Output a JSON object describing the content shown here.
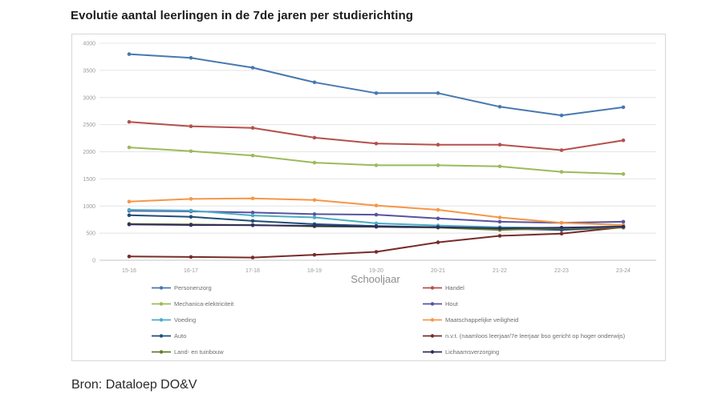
{
  "page": {
    "title": "Evolutie aantal leerlingen in de 7de jaren per studierichting",
    "source": "Bron: Dataloep DO&V"
  },
  "chart_data": {
    "type": "line",
    "title": "Evolutie aantal leerlingen in de 7de jaren per studierichting",
    "xlabel": "Schooljaar",
    "ylabel": "",
    "ylim": [
      0,
      4000
    ],
    "yticks": [
      0,
      500,
      1000,
      1500,
      2000,
      2500,
      3000,
      3500,
      4000
    ],
    "grid": true,
    "legend_position": "bottom-two-columns",
    "markers": true,
    "categories": [
      "15-16",
      "16-17",
      "17-18",
      "18-19",
      "19-20",
      "20-21",
      "21-22",
      "22-23",
      "23-24"
    ],
    "series": [
      {
        "name": "Personenzorg",
        "color": "#4878af",
        "values": [
          3800,
          3730,
          3550,
          3280,
          3080,
          3080,
          2830,
          2670,
          2820
        ]
      },
      {
        "name": "Handel",
        "color": "#b5504c",
        "values": [
          2550,
          2470,
          2440,
          2260,
          2150,
          2130,
          2130,
          2030,
          2210
        ]
      },
      {
        "name": "Mechanica-elektriciteit",
        "color": "#9bbb59",
        "values": [
          2080,
          2010,
          1930,
          1800,
          1750,
          1750,
          1730,
          1630,
          1590
        ]
      },
      {
        "name": "Hout",
        "color": "#5753a0",
        "values": [
          910,
          900,
          880,
          850,
          840,
          770,
          710,
          690,
          710
        ]
      },
      {
        "name": "Voeding",
        "color": "#4bacc6",
        "values": [
          930,
          915,
          825,
          790,
          680,
          640,
          610,
          590,
          630
        ]
      },
      {
        "name": "Maatschappelijke veiligheid",
        "color": "#f79646",
        "values": [
          1080,
          1130,
          1140,
          1110,
          1010,
          930,
          790,
          690,
          650
        ]
      },
      {
        "name": "Auto",
        "color": "#1f4e79",
        "values": [
          830,
          800,
          725,
          665,
          630,
          610,
          580,
          560,
          610
        ]
      },
      {
        "name": "n.v.t. (naamloos leerjaar/7e leerjaar bso gericht op hoger onderwijs)",
        "color": "#772c2a",
        "values": [
          70,
          60,
          50,
          100,
          155,
          330,
          450,
          490,
          610
        ]
      },
      {
        "name": "Land- en tuinbouw",
        "color": "#637d2c",
        "values": [
          670,
          660,
          650,
          625,
          615,
          600,
          560,
          590,
          600
        ]
      },
      {
        "name": "Lichaamsverzorging",
        "color": "#312d5e",
        "values": [
          660,
          650,
          645,
          635,
          620,
          610,
          590,
          600,
          620
        ]
      }
    ]
  }
}
